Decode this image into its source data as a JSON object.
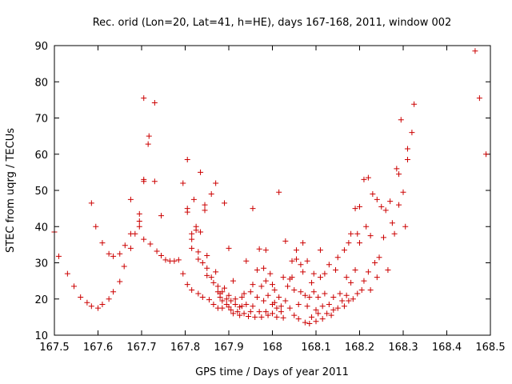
{
  "chart_data": {
    "type": "scatter",
    "title": "Rec. orid (Lon=20, Lat=41, h=HE), days 167-168, 2011, window 002",
    "xlabel": "GPS time / Days of year 2011",
    "ylabel": "STEC from uqrg / TECUs",
    "xlim": [
      167.5,
      168.5
    ],
    "ylim": [
      10,
      90
    ],
    "xticks": [
      167.5,
      167.6,
      167.7,
      167.8,
      167.9,
      168.0,
      168.1,
      168.2,
      168.3,
      168.4,
      168.5
    ],
    "xtick_labels": [
      "167.5",
      "167.6",
      "167.7",
      "167.8",
      "167.9",
      "168",
      "168.1",
      "168.2",
      "168.3",
      "168.4",
      "168.5"
    ],
    "yticks": [
      10,
      20,
      30,
      40,
      50,
      60,
      70,
      80,
      90
    ],
    "ytick_labels": [
      "10",
      "20",
      "30",
      "40",
      "50",
      "60",
      "70",
      "80",
      "90"
    ],
    "grid": false,
    "marker": "+",
    "marker_color": "#cc0000",
    "points": [
      [
        167.5,
        38.5
      ],
      [
        167.51,
        31.8
      ],
      [
        167.53,
        27.0
      ],
      [
        167.545,
        23.5
      ],
      [
        167.56,
        20.5
      ],
      [
        167.575,
        19.0
      ],
      [
        167.585,
        18.0
      ],
      [
        167.6,
        17.5
      ],
      [
        167.61,
        18.5
      ],
      [
        167.625,
        20.0
      ],
      [
        167.635,
        22.0
      ],
      [
        167.65,
        24.8
      ],
      [
        167.66,
        29.0
      ],
      [
        167.675,
        34.0
      ],
      [
        167.685,
        38.0
      ],
      [
        167.695,
        41.5
      ],
      [
        167.705,
        52.5
      ],
      [
        167.705,
        53.0
      ],
      [
        167.705,
        75.5
      ],
      [
        167.715,
        62.8
      ],
      [
        167.717,
        65.0
      ],
      [
        167.73,
        74.2
      ],
      [
        167.73,
        52.5
      ],
      [
        167.745,
        43.0
      ],
      [
        167.585,
        46.5
      ],
      [
        167.595,
        40.0
      ],
      [
        167.61,
        35.5
      ],
      [
        167.625,
        32.5
      ],
      [
        167.635,
        31.8
      ],
      [
        167.65,
        32.5
      ],
      [
        167.662,
        34.8
      ],
      [
        167.675,
        38.0
      ],
      [
        167.675,
        47.5
      ],
      [
        167.695,
        43.5
      ],
      [
        167.695,
        40.0
      ],
      [
        167.705,
        36.5
      ],
      [
        167.72,
        35.2
      ],
      [
        167.735,
        33.2
      ],
      [
        167.745,
        32.0
      ],
      [
        167.755,
        30.8
      ],
      [
        167.765,
        30.5
      ],
      [
        167.775,
        30.5
      ],
      [
        167.785,
        30.8
      ],
      [
        167.795,
        52.0
      ],
      [
        167.795,
        27.0
      ],
      [
        167.805,
        58.5
      ],
      [
        167.805,
        45.0
      ],
      [
        167.805,
        44.0
      ],
      [
        167.805,
        24.0
      ],
      [
        167.815,
        38.0
      ],
      [
        167.815,
        36.5
      ],
      [
        167.815,
        34.0
      ],
      [
        167.815,
        22.5
      ],
      [
        167.82,
        47.5
      ],
      [
        167.825,
        40.0
      ],
      [
        167.825,
        39.0
      ],
      [
        167.83,
        33.0
      ],
      [
        167.83,
        31.0
      ],
      [
        167.83,
        21.5
      ],
      [
        167.835,
        55.0
      ],
      [
        167.835,
        38.5
      ],
      [
        167.84,
        30.0
      ],
      [
        167.84,
        20.5
      ],
      [
        167.845,
        46.0
      ],
      [
        167.845,
        44.5
      ],
      [
        167.85,
        32.0
      ],
      [
        167.85,
        28.5
      ],
      [
        167.85,
        26.5
      ],
      [
        167.855,
        19.8
      ],
      [
        167.86,
        49.0
      ],
      [
        167.86,
        26.0
      ],
      [
        167.865,
        24.5
      ],
      [
        167.865,
        18.5
      ],
      [
        167.87,
        52.0
      ],
      [
        167.87,
        27.5
      ],
      [
        167.875,
        23.5
      ],
      [
        167.875,
        22.0
      ],
      [
        167.875,
        17.5
      ],
      [
        167.88,
        21.5
      ],
      [
        167.88,
        20.5
      ],
      [
        167.885,
        22.0
      ],
      [
        167.885,
        19.5
      ],
      [
        167.885,
        17.5
      ],
      [
        167.89,
        46.5
      ],
      [
        167.89,
        23.0
      ],
      [
        167.895,
        20.0
      ],
      [
        167.895,
        18.5
      ],
      [
        167.9,
        34.0
      ],
      [
        167.9,
        21.0
      ],
      [
        167.9,
        17.8
      ],
      [
        167.905,
        19.5
      ],
      [
        167.905,
        17.0
      ],
      [
        167.91,
        16.0
      ],
      [
        167.91,
        25.0
      ],
      [
        167.915,
        20.0
      ],
      [
        167.915,
        18.5
      ],
      [
        167.92,
        16.5
      ],
      [
        167.925,
        17.8
      ],
      [
        167.925,
        15.5
      ],
      [
        167.93,
        20.5
      ],
      [
        167.93,
        18.0
      ],
      [
        167.935,
        21.5
      ],
      [
        167.935,
        16.0
      ],
      [
        167.94,
        30.5
      ],
      [
        167.94,
        18.5
      ],
      [
        167.945,
        15.2
      ],
      [
        167.95,
        22.0
      ],
      [
        167.95,
        16.5
      ],
      [
        167.955,
        45.0
      ],
      [
        167.955,
        24.0
      ],
      [
        167.955,
        18.0
      ],
      [
        167.96,
        15.0
      ],
      [
        167.965,
        28.0
      ],
      [
        167.965,
        20.5
      ],
      [
        167.97,
        33.8
      ],
      [
        167.97,
        16.5
      ],
      [
        167.975,
        23.5
      ],
      [
        167.975,
        15.0
      ],
      [
        167.98,
        28.5
      ],
      [
        167.98,
        19.5
      ],
      [
        167.985,
        33.5
      ],
      [
        167.985,
        25.0
      ],
      [
        167.985,
        16.5
      ],
      [
        167.99,
        21.0
      ],
      [
        167.99,
        15.5
      ],
      [
        167.995,
        27.0
      ],
      [
        168.0,
        24.0
      ],
      [
        168.0,
        18.5
      ],
      [
        168.0,
        16.0
      ],
      [
        168.005,
        22.5
      ],
      [
        168.005,
        19.0
      ],
      [
        168.01,
        17.5
      ],
      [
        168.01,
        15.0
      ],
      [
        168.015,
        49.5
      ],
      [
        168.015,
        20.5
      ],
      [
        168.02,
        18.0
      ],
      [
        168.02,
        16.5
      ],
      [
        168.025,
        26.0
      ],
      [
        168.025,
        14.8
      ],
      [
        168.03,
        36.0
      ],
      [
        168.03,
        19.5
      ],
      [
        168.035,
        23.5
      ],
      [
        168.04,
        25.5
      ],
      [
        168.04,
        17.5
      ],
      [
        168.045,
        26.0
      ],
      [
        168.045,
        30.5
      ],
      [
        168.05,
        22.5
      ],
      [
        168.05,
        15.5
      ],
      [
        168.055,
        33.5
      ],
      [
        168.055,
        31.0
      ],
      [
        168.06,
        18.5
      ],
      [
        168.06,
        14.5
      ],
      [
        168.065,
        29.5
      ],
      [
        168.065,
        22.0
      ],
      [
        168.07,
        35.5
      ],
      [
        168.07,
        27.5
      ],
      [
        168.075,
        21.0
      ],
      [
        168.075,
        13.5
      ],
      [
        168.08,
        30.5
      ],
      [
        168.08,
        18.0
      ],
      [
        168.085,
        20.5
      ],
      [
        168.085,
        13.2
      ],
      [
        168.09,
        24.5
      ],
      [
        168.09,
        15.0
      ],
      [
        168.095,
        27.0
      ],
      [
        168.095,
        22.0
      ],
      [
        168.1,
        17.0
      ],
      [
        168.1,
        13.8
      ],
      [
        168.105,
        20.5
      ],
      [
        168.105,
        16.0
      ],
      [
        168.11,
        33.5
      ],
      [
        168.11,
        26.0
      ],
      [
        168.115,
        18.0
      ],
      [
        168.115,
        14.5
      ],
      [
        168.12,
        27.0
      ],
      [
        168.12,
        21.5
      ],
      [
        168.125,
        16.0
      ],
      [
        168.13,
        29.5
      ],
      [
        168.13,
        18.5
      ],
      [
        168.135,
        15.5
      ],
      [
        168.14,
        20.5
      ],
      [
        168.14,
        17.0
      ],
      [
        168.145,
        28.0
      ],
      [
        168.15,
        31.5
      ],
      [
        168.15,
        17.5
      ],
      [
        168.155,
        21.5
      ],
      [
        168.16,
        19.5
      ],
      [
        168.165,
        33.5
      ],
      [
        168.165,
        18.0
      ],
      [
        168.17,
        26.0
      ],
      [
        168.17,
        21.0
      ],
      [
        168.175,
        35.5
      ],
      [
        168.175,
        19.5
      ],
      [
        168.18,
        38.0
      ],
      [
        168.18,
        24.5
      ],
      [
        168.185,
        20.0
      ],
      [
        168.19,
        45.0
      ],
      [
        168.19,
        28.0
      ],
      [
        168.195,
        38.0
      ],
      [
        168.195,
        21.5
      ],
      [
        168.2,
        45.5
      ],
      [
        168.2,
        35.5
      ],
      [
        168.205,
        22.5
      ],
      [
        168.21,
        53.0
      ],
      [
        168.21,
        25.0
      ],
      [
        168.215,
        40.0
      ],
      [
        168.22,
        53.5
      ],
      [
        168.22,
        27.5
      ],
      [
        168.225,
        37.5
      ],
      [
        168.225,
        22.5
      ],
      [
        168.23,
        49.0
      ],
      [
        168.235,
        30.0
      ],
      [
        168.24,
        47.5
      ],
      [
        168.24,
        26.0
      ],
      [
        168.245,
        31.5
      ],
      [
        168.25,
        45.5
      ],
      [
        168.255,
        37.0
      ],
      [
        168.26,
        44.5
      ],
      [
        168.265,
        28.0
      ],
      [
        168.27,
        47.0
      ],
      [
        168.275,
        41.0
      ],
      [
        168.28,
        38.0
      ],
      [
        168.285,
        56.0
      ],
      [
        168.29,
        54.5
      ],
      [
        168.29,
        46.0
      ],
      [
        168.295,
        69.5
      ],
      [
        168.3,
        49.5
      ],
      [
        168.305,
        40.0
      ],
      [
        168.31,
        61.5
      ],
      [
        168.31,
        58.5
      ],
      [
        168.32,
        66.0
      ],
      [
        168.325,
        73.8
      ],
      [
        168.465,
        88.5
      ],
      [
        168.475,
        75.5
      ],
      [
        168.49,
        60.0
      ]
    ]
  }
}
